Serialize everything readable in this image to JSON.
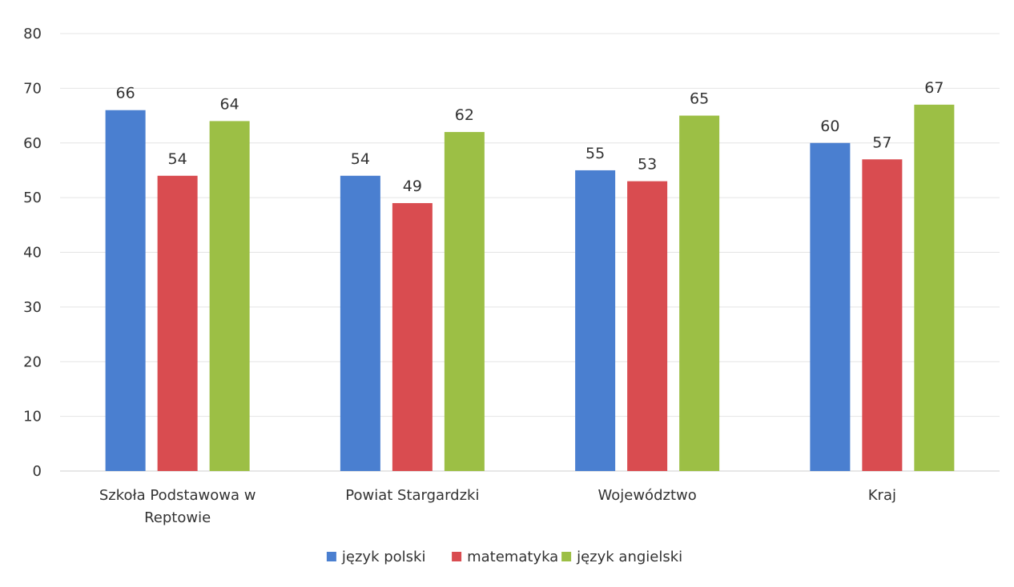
{
  "chart_data": {
    "type": "bar",
    "categories": [
      [
        "Szkoła Podstawowa w",
        "Reptowie"
      ],
      [
        "Powiat Stargardzki"
      ],
      [
        "Województwo"
      ],
      [
        "Kraj"
      ]
    ],
    "series": [
      {
        "name": "język polski",
        "color": "#4a7fd0",
        "values": [
          66,
          54,
          55,
          60
        ]
      },
      {
        "name": "matematyka",
        "color": "#d94c50",
        "values": [
          54,
          49,
          53,
          57
        ]
      },
      {
        "name": "język angielski",
        "color": "#9cbf45",
        "values": [
          64,
          62,
          65,
          67
        ]
      }
    ],
    "ylim": [
      0,
      80
    ],
    "yticks": [
      0,
      10,
      20,
      30,
      40,
      50,
      60,
      70,
      80
    ],
    "grid": true,
    "legend_position": "bottom",
    "data_labels": true
  }
}
